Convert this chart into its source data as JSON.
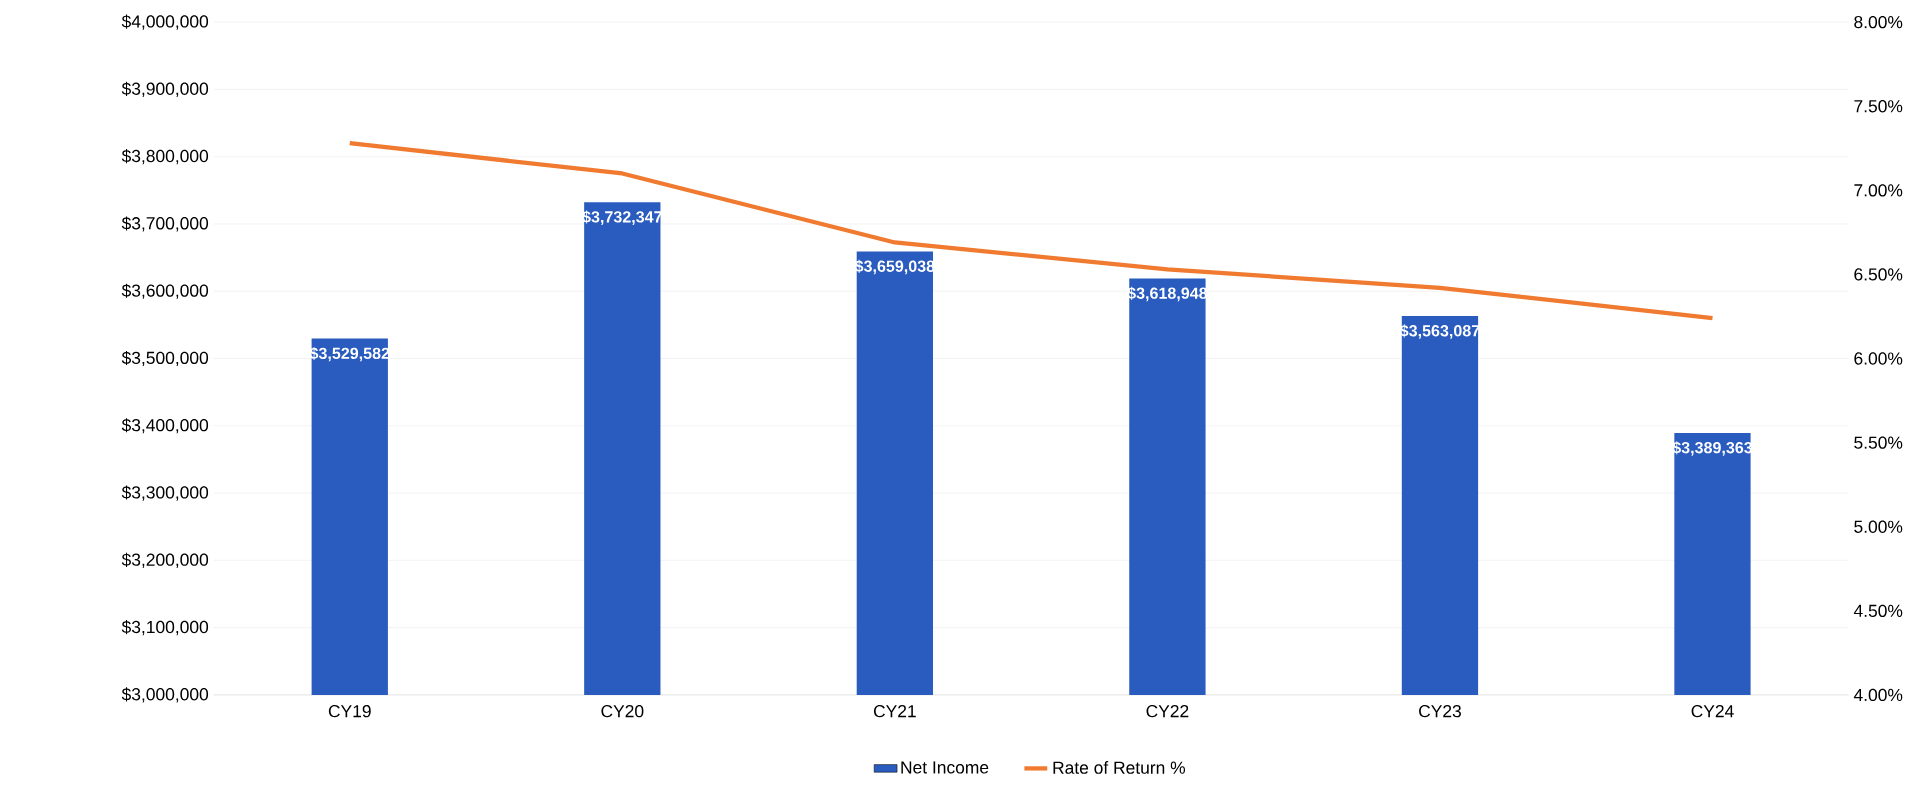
{
  "chart_data": {
    "type": "bar",
    "categories": [
      "CY19",
      "CY20",
      "CY21",
      "CY22",
      "CY23",
      "CY24"
    ],
    "series": [
      {
        "name": "Net Income",
        "color": "#2a5cbf",
        "values": [
          3529582,
          3732347,
          3659038,
          3618948,
          3563087,
          3389363
        ],
        "value_labels": [
          "$3,529,582",
          "$3,732,347",
          "$3,659,038",
          "$3,618,948",
          "$3,563,087",
          "$3,389,363"
        ]
      },
      {
        "name": "Rate of Return %",
        "type": "line",
        "axis": "y2",
        "color": "#f07a30",
        "values": [
          7.28,
          7.1,
          6.69,
          6.53,
          6.42,
          6.24
        ]
      }
    ],
    "ylim": [
      3000000,
      4000000
    ],
    "yticks": [
      {
        "value": 3000000,
        "label": "$3,000,000"
      },
      {
        "value": 3100000,
        "label": "$3,100,000"
      },
      {
        "value": 3200000,
        "label": "$3,200,000"
      },
      {
        "value": 3300000,
        "label": "$3,300,000"
      },
      {
        "value": 3400000,
        "label": "$3,400,000"
      },
      {
        "value": 3500000,
        "label": "$3,500,000"
      },
      {
        "value": 3600000,
        "label": "$3,600,000"
      },
      {
        "value": 3700000,
        "label": "$3,700,000"
      },
      {
        "value": 3800000,
        "label": "$3,800,000"
      },
      {
        "value": 3900000,
        "label": "$3,900,000"
      },
      {
        "value": 4000000,
        "label": "$4,000,000"
      }
    ],
    "y2lim": [
      4,
      8
    ],
    "y2ticks": [
      {
        "value": 4,
        "label": "4.00%"
      },
      {
        "value": 4.5,
        "label": "4.50%"
      },
      {
        "value": 5,
        "label": "5.00%"
      },
      {
        "value": 5.5,
        "label": "5.50%"
      },
      {
        "value": 6,
        "label": "6.00%"
      },
      {
        "value": 6.5,
        "label": "6.50%"
      },
      {
        "value": 7,
        "label": "7.00%"
      },
      {
        "value": 7.5,
        "label": "7.50%"
      },
      {
        "value": 8,
        "label": "8.00%"
      }
    ],
    "grid": "y",
    "legend": "bottom"
  }
}
